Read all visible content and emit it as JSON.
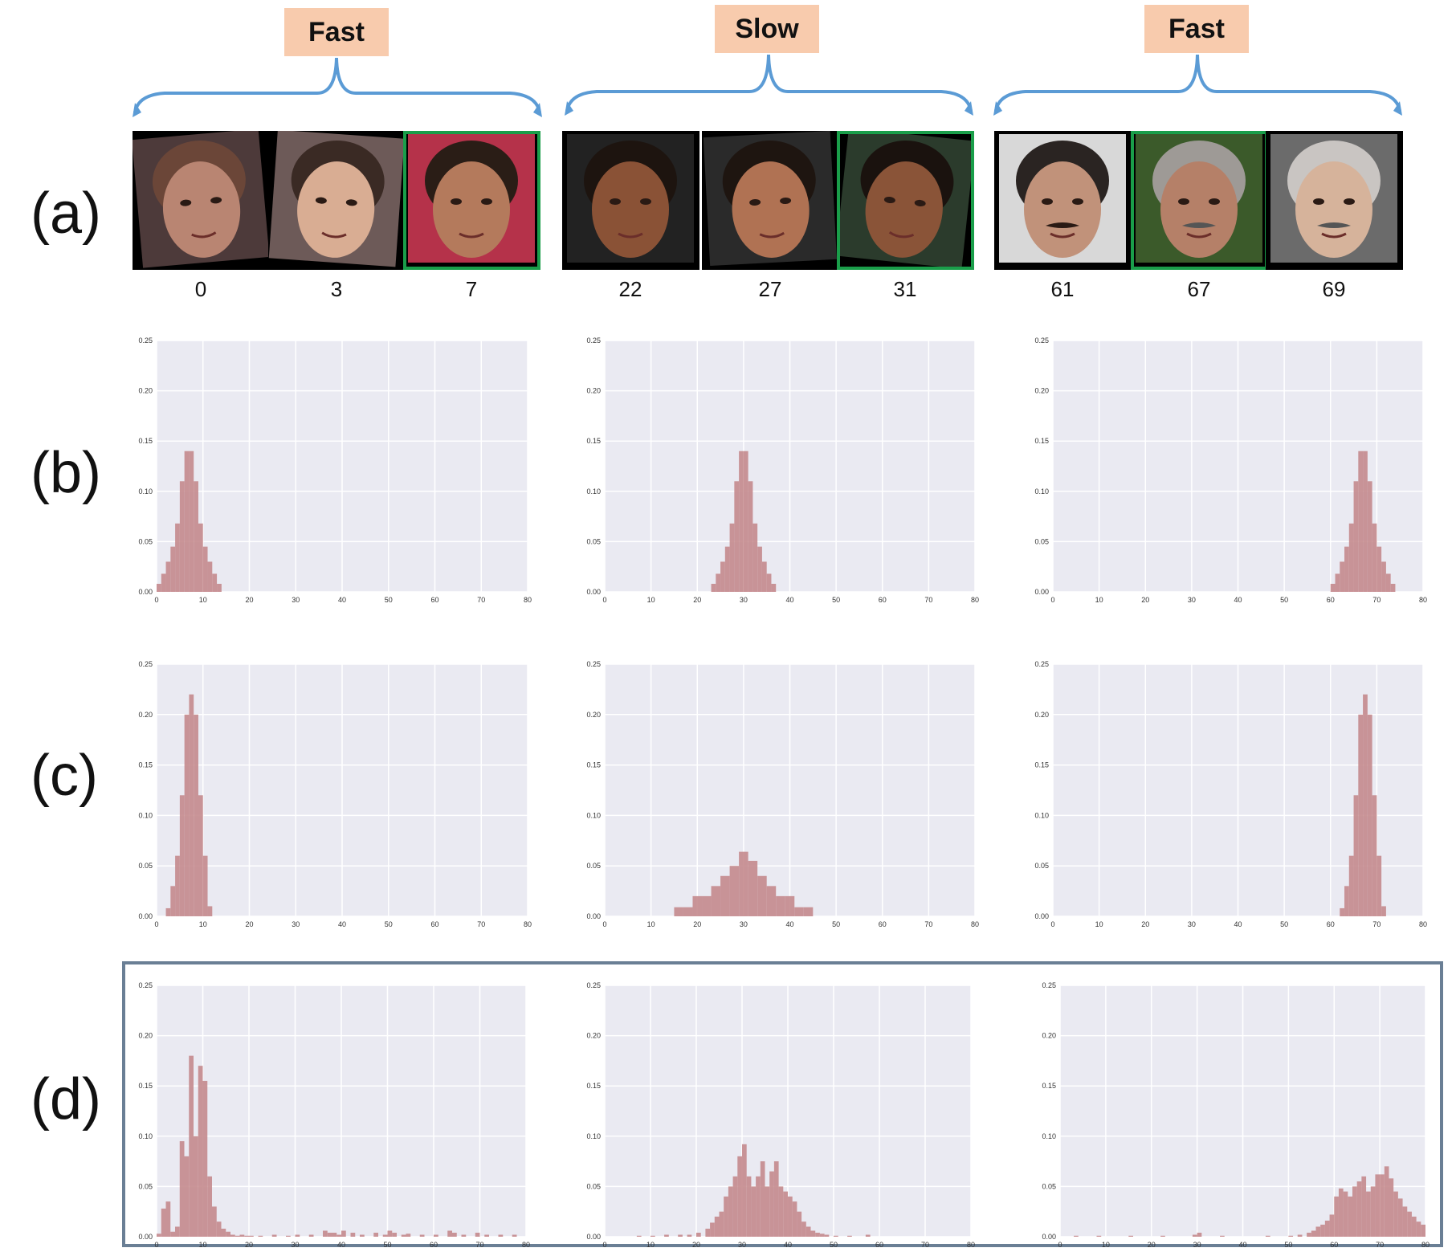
{
  "header": {
    "groups": [
      {
        "label": "Fast"
      },
      {
        "label": "Slow"
      },
      {
        "label": "Fast"
      }
    ]
  },
  "rows": [
    "(a)",
    "(b)",
    "(c)",
    "(d)"
  ],
  "faces": [
    {
      "age": "0",
      "highlight": false
    },
    {
      "age": "3",
      "highlight": false
    },
    {
      "age": "7",
      "highlight": true
    },
    {
      "age": "22",
      "highlight": false
    },
    {
      "age": "27",
      "highlight": false
    },
    {
      "age": "31",
      "highlight": true
    },
    {
      "age": "61",
      "highlight": false
    },
    {
      "age": "67",
      "highlight": true
    },
    {
      "age": "69",
      "highlight": false
    }
  ],
  "colors": {
    "bar": "#c48a8d",
    "plot_bg": "#eaeaf2",
    "grid": "#ffffff",
    "bracket": "#5b9bd5",
    "tag_bg": "#f8cbad",
    "highlight": "#1a9e4a",
    "dbox_border": "#6a7f95"
  },
  "chart_data": [
    {
      "type": "bar",
      "row": "b",
      "col": 0,
      "xlim": [
        0,
        80
      ],
      "ylim": [
        0,
        0.25
      ],
      "xticks": [
        0,
        10,
        20,
        30,
        40,
        50,
        60,
        70,
        80
      ],
      "yticks": [
        "0.00",
        "0.05",
        "0.10",
        "0.15",
        "0.20",
        "0.25"
      ],
      "x": [
        0,
        1,
        2,
        3,
        4,
        5,
        6,
        7,
        8,
        9,
        10,
        11,
        12,
        13
      ],
      "values": [
        0.008,
        0.018,
        0.03,
        0.045,
        0.068,
        0.11,
        0.14,
        0.14,
        0.11,
        0.068,
        0.045,
        0.03,
        0.018,
        0.008
      ]
    },
    {
      "type": "bar",
      "row": "b",
      "col": 1,
      "xlim": [
        0,
        80
      ],
      "ylim": [
        0,
        0.25
      ],
      "xticks": [
        0,
        10,
        20,
        30,
        40,
        50,
        60,
        70,
        80
      ],
      "yticks": [
        "0.00",
        "0.05",
        "0.10",
        "0.15",
        "0.20",
        "0.25"
      ],
      "x": [
        23,
        24,
        25,
        26,
        27,
        28,
        29,
        30,
        31,
        32,
        33,
        34,
        35,
        36
      ],
      "values": [
        0.008,
        0.018,
        0.03,
        0.045,
        0.068,
        0.11,
        0.14,
        0.14,
        0.11,
        0.068,
        0.045,
        0.03,
        0.018,
        0.008
      ]
    },
    {
      "type": "bar",
      "row": "b",
      "col": 2,
      "xlim": [
        0,
        80
      ],
      "ylim": [
        0,
        0.25
      ],
      "xticks": [
        0,
        10,
        20,
        30,
        40,
        50,
        60,
        70,
        80
      ],
      "yticks": [
        "0.00",
        "0.05",
        "0.10",
        "0.15",
        "0.20",
        "0.25"
      ],
      "x": [
        60,
        61,
        62,
        63,
        64,
        65,
        66,
        67,
        68,
        69,
        70,
        71,
        72,
        73
      ],
      "values": [
        0.008,
        0.018,
        0.03,
        0.045,
        0.068,
        0.11,
        0.14,
        0.14,
        0.11,
        0.068,
        0.045,
        0.03,
        0.018,
        0.008
      ]
    },
    {
      "type": "bar",
      "row": "c",
      "col": 0,
      "xlim": [
        0,
        80
      ],
      "ylim": [
        0,
        0.25
      ],
      "xticks": [
        0,
        10,
        20,
        30,
        40,
        50,
        60,
        70,
        80
      ],
      "yticks": [
        "0.00",
        "0.05",
        "0.10",
        "0.15",
        "0.20",
        "0.25"
      ],
      "x": [
        2,
        3,
        4,
        5,
        6,
        7,
        8,
        9,
        10,
        11
      ],
      "values": [
        0.008,
        0.03,
        0.06,
        0.12,
        0.2,
        0.22,
        0.2,
        0.12,
        0.06,
        0.01
      ]
    },
    {
      "type": "bar",
      "row": "c",
      "col": 1,
      "xlim": [
        0,
        80
      ],
      "ylim": [
        0,
        0.25
      ],
      "xticks": [
        0,
        10,
        20,
        30,
        40,
        50,
        60,
        70,
        80
      ],
      "yticks": [
        "0.00",
        "0.05",
        "0.10",
        "0.15",
        "0.20",
        "0.25"
      ],
      "x": [
        15,
        17,
        19,
        21,
        23,
        25,
        27,
        29,
        31,
        33,
        35,
        37,
        39,
        41,
        43
      ],
      "values": [
        0.009,
        0.009,
        0.02,
        0.02,
        0.03,
        0.04,
        0.05,
        0.064,
        0.055,
        0.04,
        0.03,
        0.02,
        0.02,
        0.009,
        0.009
      ],
      "binwidth": 2
    },
    {
      "type": "bar",
      "row": "c",
      "col": 2,
      "xlim": [
        0,
        80
      ],
      "ylim": [
        0,
        0.25
      ],
      "xticks": [
        0,
        10,
        20,
        30,
        40,
        50,
        60,
        70,
        80
      ],
      "yticks": [
        "0.00",
        "0.05",
        "0.10",
        "0.15",
        "0.20",
        "0.25"
      ],
      "x": [
        62,
        63,
        64,
        65,
        66,
        67,
        68,
        69,
        70,
        71
      ],
      "values": [
        0.008,
        0.03,
        0.06,
        0.12,
        0.2,
        0.22,
        0.2,
        0.12,
        0.06,
        0.01
      ]
    },
    {
      "type": "bar",
      "row": "d",
      "col": 0,
      "xlim": [
        0,
        80
      ],
      "ylim": [
        0,
        0.25
      ],
      "xticks": [
        0,
        10,
        20,
        30,
        40,
        50,
        60,
        70,
        80
      ],
      "yticks": [
        "0.00",
        "0.05",
        "0.10",
        "0.15",
        "0.20",
        "0.25"
      ],
      "x": [
        0,
        1,
        2,
        3,
        4,
        5,
        6,
        7,
        8,
        9,
        10,
        11,
        12,
        13,
        14,
        15,
        16,
        17,
        18,
        19,
        20,
        22,
        25,
        28,
        30,
        33,
        36,
        37,
        38,
        39,
        40,
        42,
        44,
        47,
        49,
        50,
        51,
        53,
        54,
        57,
        60,
        63,
        64,
        66,
        69,
        71,
        74,
        77
      ],
      "values": [
        0.003,
        0.028,
        0.035,
        0.005,
        0.01,
        0.095,
        0.08,
        0.18,
        0.1,
        0.17,
        0.155,
        0.06,
        0.03,
        0.015,
        0.008,
        0.005,
        0.002,
        0.001,
        0.002,
        0.001,
        0.001,
        0.001,
        0.002,
        0.001,
        0.002,
        0.002,
        0.006,
        0.004,
        0.004,
        0.002,
        0.006,
        0.004,
        0.002,
        0.004,
        0.002,
        0.006,
        0.004,
        0.002,
        0.003,
        0.002,
        0.002,
        0.006,
        0.004,
        0.002,
        0.004,
        0.002,
        0.002,
        0.002
      ]
    },
    {
      "type": "bar",
      "row": "d",
      "col": 1,
      "xlim": [
        0,
        80
      ],
      "ylim": [
        0,
        0.25
      ],
      "xticks": [
        0,
        10,
        20,
        30,
        40,
        50,
        60,
        70,
        80
      ],
      "yticks": [
        "0.00",
        "0.05",
        "0.10",
        "0.15",
        "0.20",
        "0.25"
      ],
      "x": [
        7,
        10,
        13,
        16,
        18,
        20,
        22,
        23,
        24,
        25,
        26,
        27,
        28,
        29,
        30,
        31,
        32,
        33,
        34,
        35,
        36,
        37,
        38,
        39,
        40,
        41,
        42,
        43,
        44,
        45,
        46,
        47,
        48,
        50,
        53,
        57
      ],
      "values": [
        0.001,
        0.001,
        0.002,
        0.002,
        0.002,
        0.004,
        0.008,
        0.014,
        0.02,
        0.025,
        0.04,
        0.05,
        0.06,
        0.08,
        0.092,
        0.06,
        0.05,
        0.06,
        0.075,
        0.05,
        0.065,
        0.075,
        0.05,
        0.045,
        0.04,
        0.035,
        0.025,
        0.015,
        0.01,
        0.006,
        0.004,
        0.003,
        0.002,
        0.001,
        0.001,
        0.002
      ]
    },
    {
      "type": "bar",
      "row": "d",
      "col": 2,
      "xlim": [
        0,
        80
      ],
      "ylim": [
        0,
        0.25
      ],
      "xticks": [
        0,
        10,
        20,
        30,
        40,
        50,
        60,
        70,
        80
      ],
      "yticks": [
        "0.00",
        "0.05",
        "0.10",
        "0.15",
        "0.20",
        "0.25"
      ],
      "x": [
        3,
        8,
        15,
        22,
        29,
        30,
        35,
        45,
        50,
        52,
        54,
        55,
        56,
        57,
        58,
        59,
        60,
        61,
        62,
        63,
        64,
        65,
        66,
        67,
        68,
        69,
        70,
        71,
        72,
        73,
        74,
        75,
        76,
        77,
        78,
        79
      ],
      "values": [
        0.001,
        0.001,
        0.001,
        0.001,
        0.002,
        0.004,
        0.001,
        0.001,
        0.001,
        0.002,
        0.004,
        0.006,
        0.01,
        0.012,
        0.016,
        0.022,
        0.04,
        0.048,
        0.045,
        0.04,
        0.05,
        0.055,
        0.06,
        0.045,
        0.05,
        0.062,
        0.062,
        0.07,
        0.058,
        0.045,
        0.038,
        0.03,
        0.025,
        0.02,
        0.015,
        0.012
      ]
    }
  ]
}
